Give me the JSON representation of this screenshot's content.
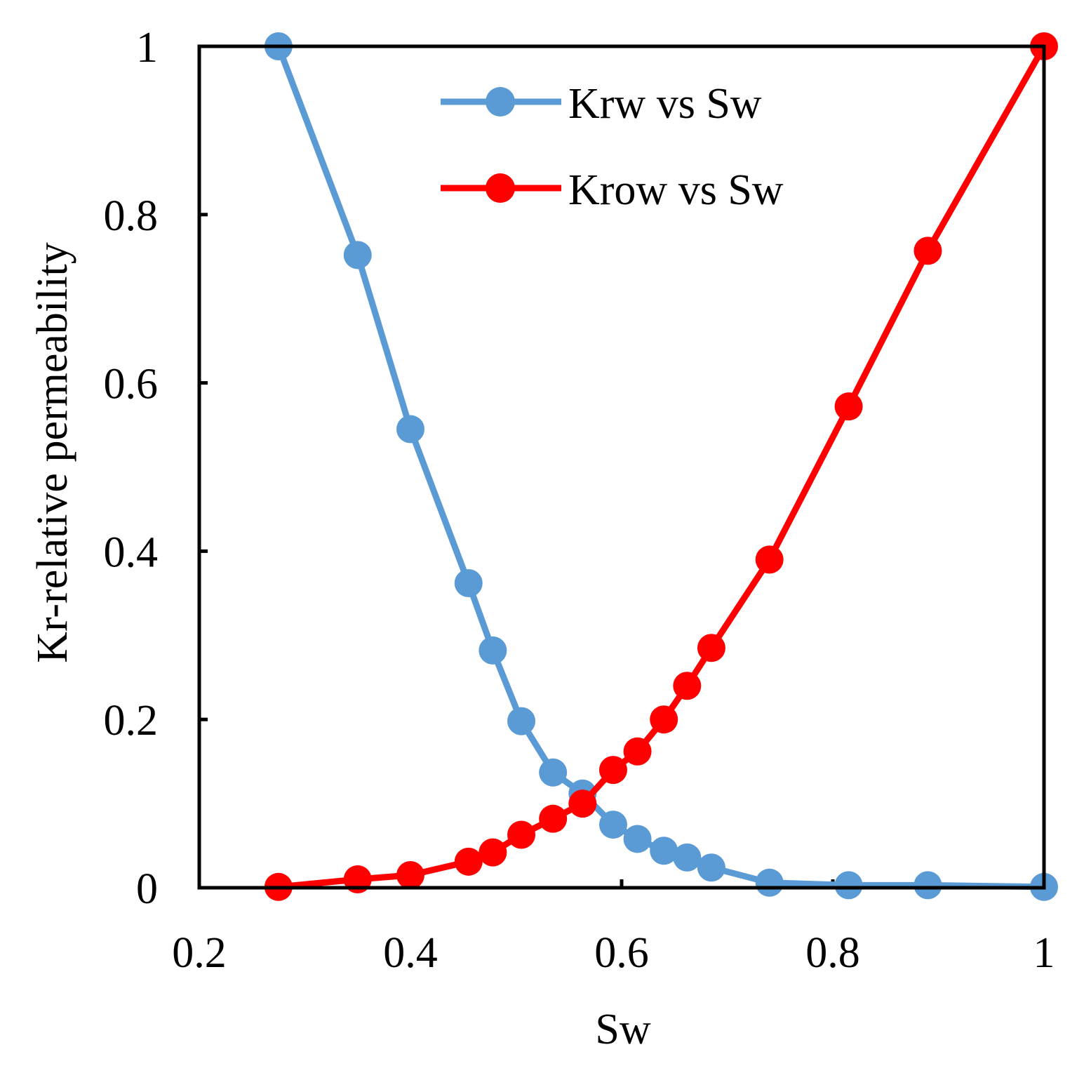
{
  "chart_data": {
    "type": "line",
    "title": "",
    "xlabel": "Sw",
    "ylabel": "Kr-relative permeability",
    "xlim": [
      0.2,
      1
    ],
    "ylim": [
      0,
      1
    ],
    "xticks": [
      0.2,
      0.4,
      0.6,
      0.8,
      1
    ],
    "xtick_labels": [
      "0.2",
      "0.4",
      "0.6",
      "0.8",
      "1"
    ],
    "yticks": [
      0,
      0.2,
      0.4,
      0.6,
      0.8,
      1
    ],
    "ytick_labels": [
      "0",
      "0.2",
      "0.4",
      "0.6",
      "0.8",
      "1"
    ],
    "grid": false,
    "legend_position": "top-center",
    "series": [
      {
        "name": "Krw vs Sw",
        "color": "#5B9BD5",
        "marker": "circle",
        "x": [
          0.275,
          0.35,
          0.4,
          0.455,
          0.478,
          0.505,
          0.535,
          0.563,
          0.592,
          0.615,
          0.64,
          0.662,
          0.685,
          0.74,
          0.815,
          0.89,
          1.0
        ],
        "y": [
          1.0,
          0.752,
          0.545,
          0.362,
          0.282,
          0.198,
          0.137,
          0.112,
          0.075,
          0.058,
          0.044,
          0.036,
          0.024,
          0.006,
          0.003,
          0.003,
          0.001
        ]
      },
      {
        "name": "Krow vs Sw",
        "color": "#FF0000",
        "marker": "circle",
        "x": [
          0.275,
          0.35,
          0.4,
          0.455,
          0.478,
          0.505,
          0.535,
          0.563,
          0.592,
          0.615,
          0.64,
          0.662,
          0.685,
          0.74,
          0.815,
          0.89,
          1.0
        ],
        "y": [
          0.001,
          0.01,
          0.015,
          0.031,
          0.042,
          0.063,
          0.082,
          0.1,
          0.14,
          0.162,
          0.2,
          0.24,
          0.285,
          0.39,
          0.572,
          0.757,
          1.0
        ]
      }
    ]
  }
}
